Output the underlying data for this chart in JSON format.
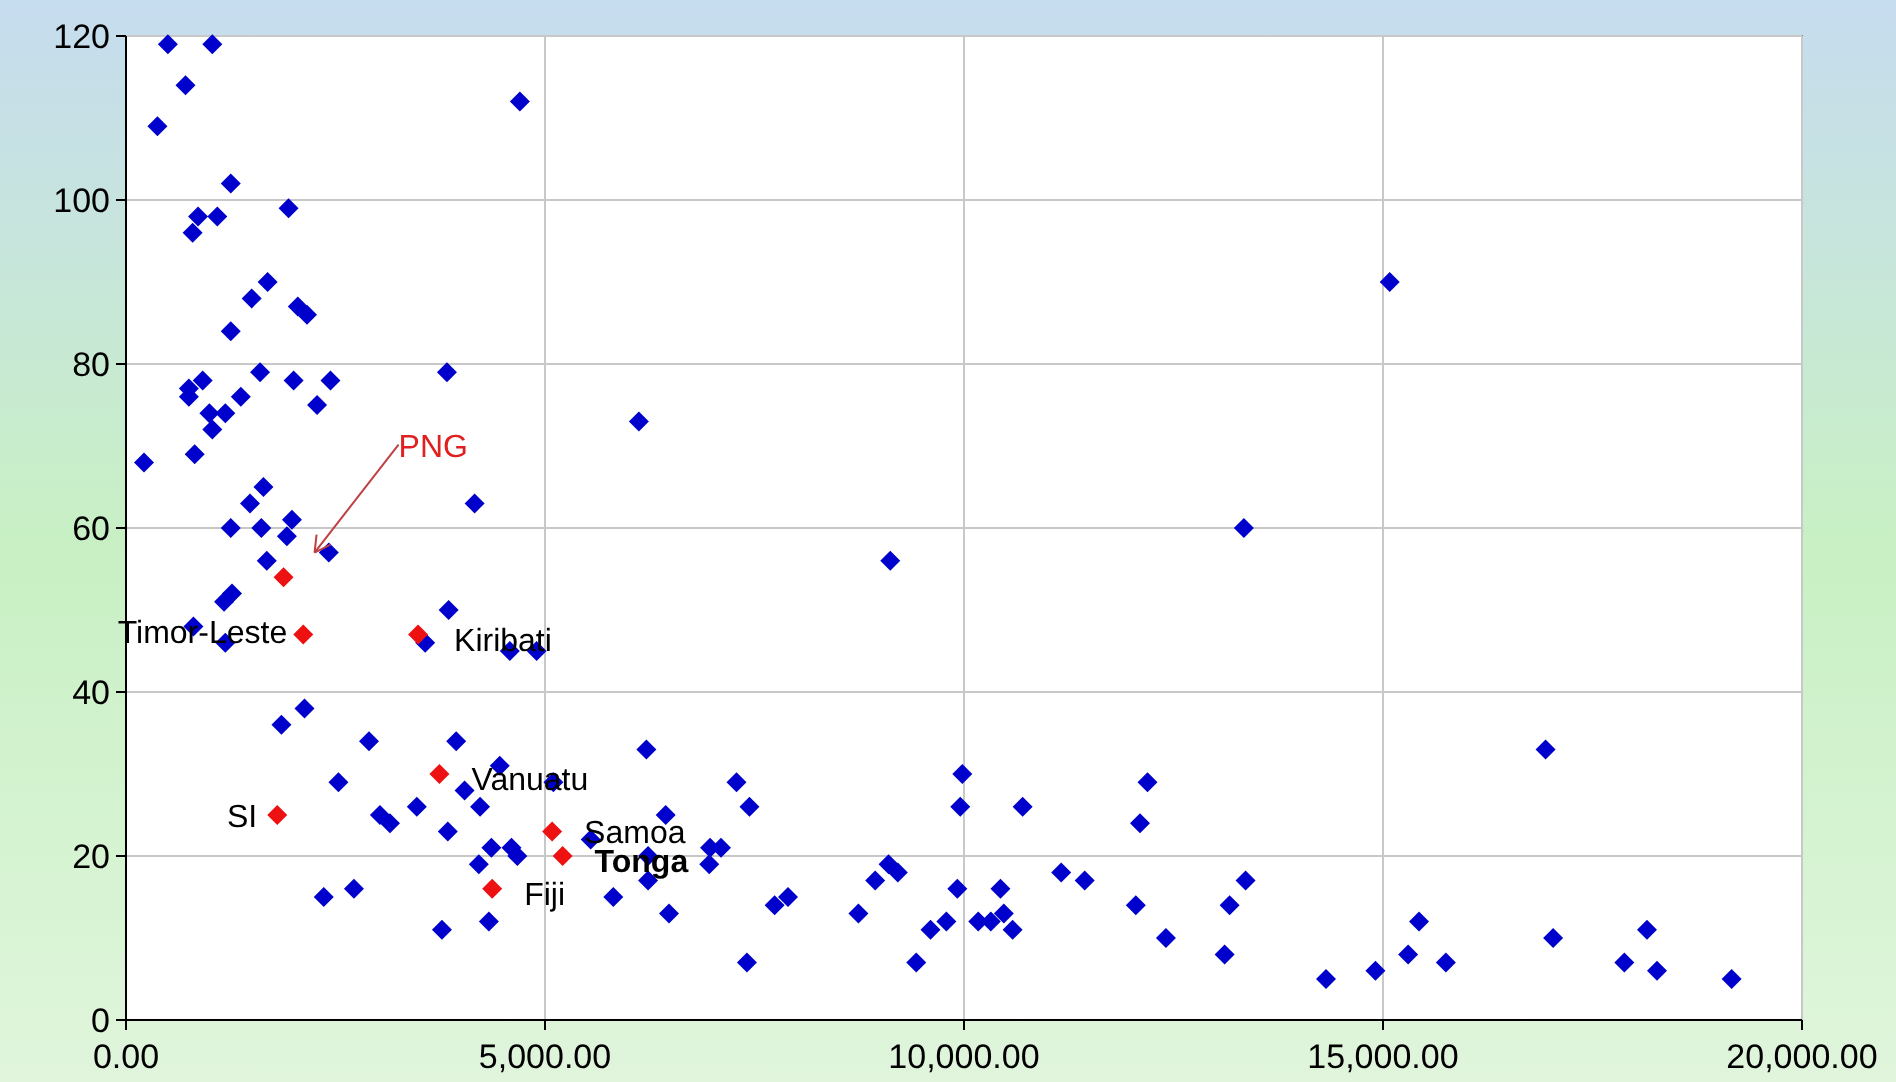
{
  "chart_data": {
    "type": "scatter",
    "marker": "diamond",
    "grid": true,
    "xlim": [
      0,
      20000
    ],
    "xticks": [
      {
        "value": 0,
        "label": "0.00"
      },
      {
        "value": 5000,
        "label": "5,000.00"
      },
      {
        "value": 10000,
        "label": "10,000.00"
      },
      {
        "value": 15000,
        "label": "15,000.00"
      },
      {
        "value": 20000,
        "label": "20,000.00"
      }
    ],
    "ylim": [
      0,
      120
    ],
    "yticks": [
      0,
      20,
      40,
      60,
      80,
      100,
      120
    ],
    "series": [
      {
        "color": "#0000cc",
        "x": [
          500,
          1030,
          375,
          710,
          4700,
          1250,
          860,
          1090,
          795,
          1940,
          1690,
          1500,
          2050,
          2160,
          1250,
          3830,
          1600,
          750,
          750,
          915,
          2000,
          2440,
          2280,
          1370,
          995,
          1185,
          1030,
          6120,
          820,
          215,
          4160,
          1480,
          1640,
          1250,
          1615,
          1980,
          1920,
          2420,
          1680,
          1265,
          1170,
          805,
          1185,
          3570,
          3850,
          4580,
          4900,
          1855,
          2130,
          2900,
          3940,
          2535,
          4460,
          5100,
          4040,
          4225,
          3470,
          3030,
          3150,
          3840,
          4360,
          4600,
          4670,
          4210,
          2360,
          2720,
          4330,
          3770,
          5815,
          6210,
          6230,
          5545,
          9120,
          13340,
          7285,
          7440,
          6440,
          6970,
          7100,
          6960,
          6230,
          6480,
          7740,
          7900,
          7410,
          8740,
          8940,
          9100,
          9210,
          9430,
          9600,
          9790,
          9920,
          9980,
          9955,
          10170,
          10320,
          10435,
          10475,
          10580,
          10700,
          11160,
          11440,
          12050,
          12100,
          12190,
          12410,
          13110,
          13170,
          13360,
          15080,
          16940,
          14320,
          14910,
          15430,
          15300,
          15750,
          17030,
          17880,
          18150,
          18270,
          19160
        ],
        "values": [
          119,
          119,
          109,
          114,
          112,
          102,
          98,
          98,
          96,
          99,
          90,
          88,
          87,
          86,
          84,
          79,
          79,
          77,
          76,
          78,
          78,
          78,
          75,
          76,
          74,
          74,
          72,
          73,
          69,
          68,
          63,
          63,
          65,
          60,
          60,
          61,
          59,
          57,
          56,
          52,
          51,
          48,
          46,
          46,
          50,
          45,
          45,
          36,
          38,
          34,
          34,
          29,
          31,
          29,
          28,
          26,
          26,
          25,
          24,
          23,
          21,
          21,
          20,
          19,
          15,
          16,
          12,
          11,
          15,
          33,
          17,
          22,
          56,
          60,
          29,
          26,
          25,
          21,
          21,
          19,
          20,
          13,
          14,
          15,
          7,
          13,
          17,
          19,
          18,
          7,
          11,
          12,
          16,
          30,
          26,
          12,
          12,
          16,
          13,
          11,
          26,
          18,
          17,
          14,
          24,
          29,
          10,
          8,
          14,
          17,
          90,
          33,
          5,
          6,
          12,
          8,
          7,
          10,
          7,
          11,
          6,
          5
        ]
      },
      {
        "color": "#ee1111",
        "x": [
          1880,
          2115,
          3485,
          3740,
          1805,
          5085,
          5210,
          4370
        ],
        "values": [
          54,
          47,
          47,
          30,
          25,
          23,
          20,
          16
        ]
      }
    ],
    "annotations": [
      {
        "text": "PNG",
        "x": 2250,
        "y": 57
      },
      {
        "text": "Timor-Leste",
        "x": 2115,
        "y": 47
      },
      {
        "text": "Kiribati",
        "x": 3485,
        "y": 47
      },
      {
        "text": "Vanuatu",
        "x": 3740,
        "y": 30
      },
      {
        "text": "SI",
        "x": 1805,
        "y": 25
      },
      {
        "text": "Samoa",
        "x": 5085,
        "y": 23
      },
      {
        "text": "Tonga",
        "x": 5210,
        "y": 20
      },
      {
        "text": "Fiji",
        "x": 4370,
        "y": 16
      }
    ]
  }
}
